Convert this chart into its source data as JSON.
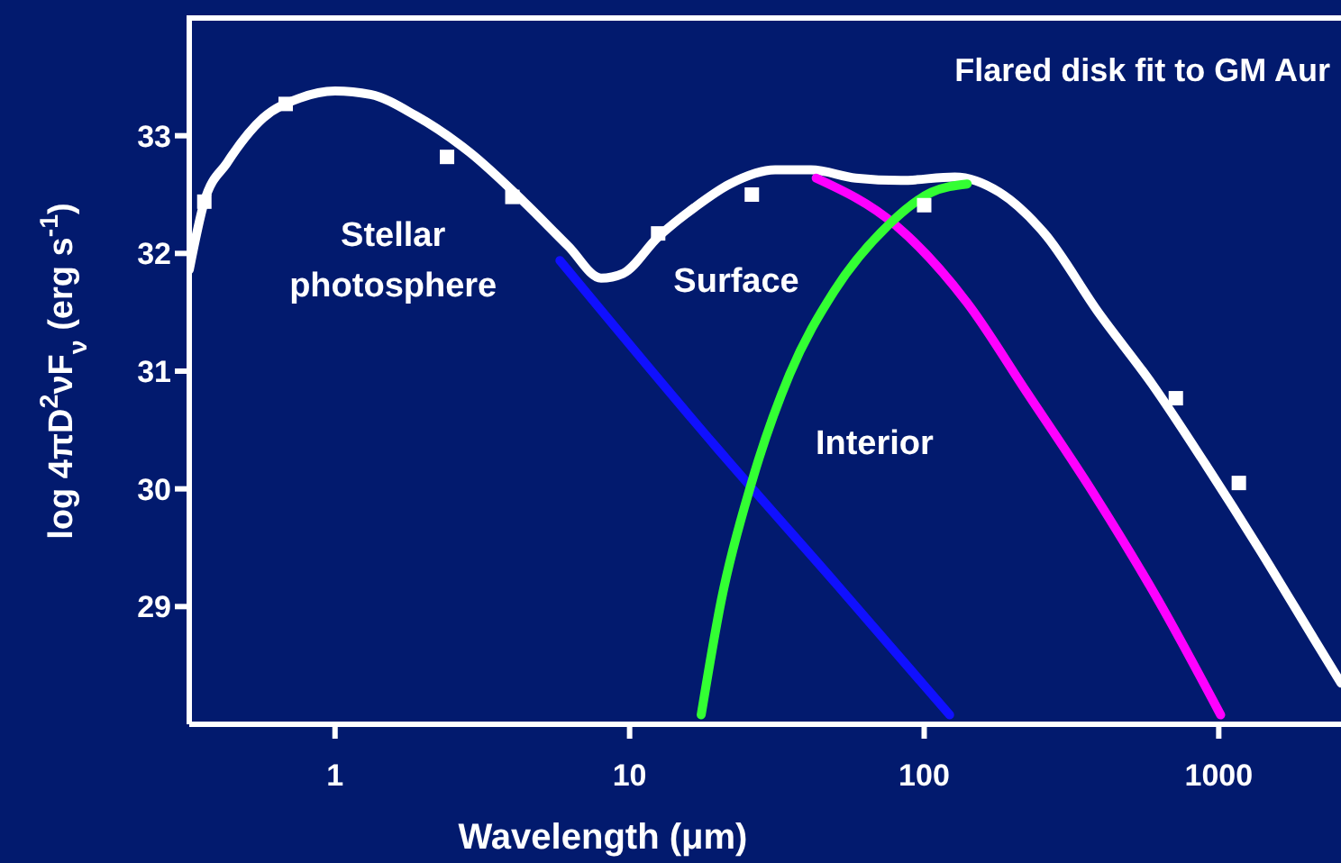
{
  "chart_data": {
    "type": "line",
    "title": "Flared disk fit to GM Aur",
    "xlabel": "Wavelength (μm)",
    "ylabel": "log 4πD$^{2}$νF$_{ν}$ (erg s$^{-1}$)",
    "log": "x",
    "xlim": [
      0.32,
      2600
    ],
    "ylim": [
      28,
      34
    ],
    "xticks": [
      1,
      10,
      100,
      1000
    ],
    "yticks": [
      29,
      30,
      31,
      32,
      33
    ],
    "grid": false,
    "legend": false,
    "line_style": "solid",
    "marker": "none",
    "annotations": [
      "Stellar photosphere",
      "Surface",
      "Interior"
    ],
    "series": [
      {
        "color": "#ffffff",
        "x": [
          0.32,
          0.36,
          0.43,
          0.57,
          0.76,
          1,
          1.32,
          1.88,
          2.86,
          4.37,
          6.2,
          8.0,
          9.5,
          12.5,
          16.6,
          21.9,
          31.2,
          41.3,
          58.6,
          83.4,
          127,
          180,
          256,
          390,
          594,
          906,
          1380,
          2100,
          2600
        ],
        "values": [
          31.86,
          32.44,
          32.77,
          33.15,
          33.32,
          33.38,
          33.35,
          33.17,
          32.86,
          32.44,
          32.06,
          31.79,
          31.83,
          32.14,
          32.39,
          32.59,
          32.71,
          32.71,
          32.64,
          32.62,
          32.65,
          32.52,
          32.17,
          31.5,
          30.89,
          30.2,
          29.48,
          28.73,
          28.35
        ]
      },
      {
        "color": "#1010ff",
        "x": [
          5.8,
          19.6,
          50,
          122
        ],
        "values": [
          31.94,
          30.36,
          29.2,
          28.08
        ]
      },
      {
        "color": "#ff00ff",
        "x": [
          43,
          80,
          140,
          223,
          374,
          621,
          1015
        ],
        "values": [
          32.64,
          32.24,
          31.58,
          30.82,
          29.97,
          29.06,
          28.08
        ]
      },
      {
        "color": "#33ff33",
        "x": [
          17.5,
          20.5,
          26,
          34.9,
          49.5,
          75.5,
          106,
          140
        ],
        "values": [
          28.08,
          29.06,
          30.06,
          30.97,
          31.68,
          32.24,
          32.52,
          32.59
        ]
      },
      {
        "type": "scatter",
        "color": "#ffffff",
        "marker": "square",
        "x": [
          0.36,
          0.68,
          2.4,
          4.0,
          12.5,
          26,
          100,
          715,
          1170
        ],
        "values": [
          32.44,
          33.27,
          32.82,
          32.48,
          32.17,
          32.5,
          32.41,
          30.77,
          30.05
        ]
      }
    ]
  }
}
